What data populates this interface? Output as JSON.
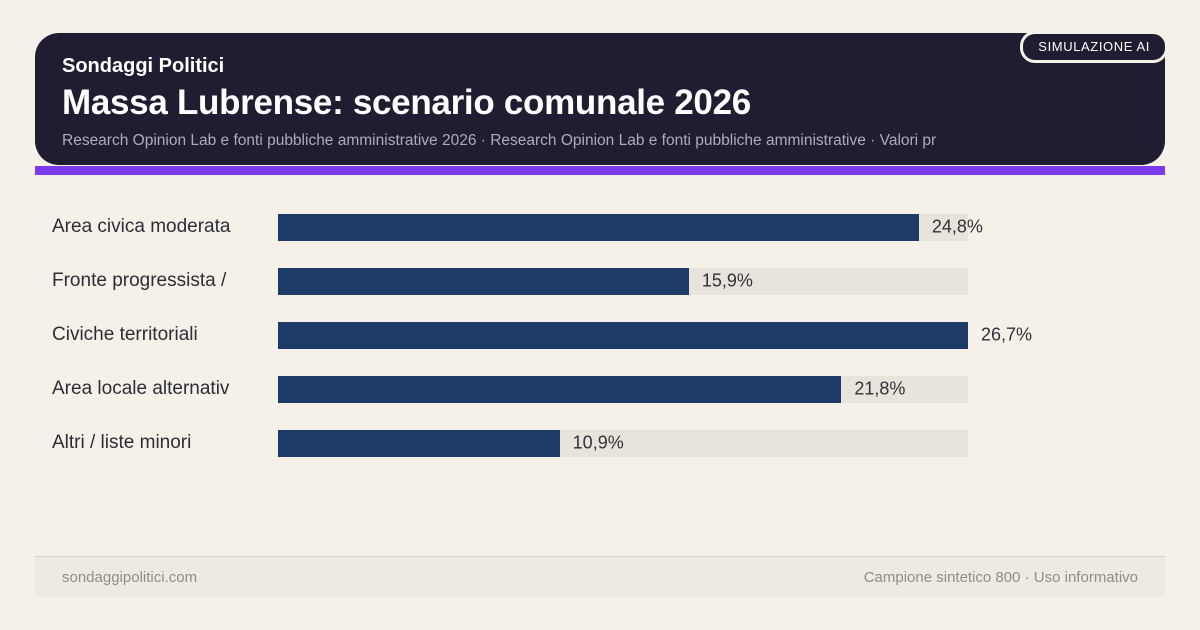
{
  "badge": {
    "label": "SIMULAZIONE AI"
  },
  "header": {
    "eyebrow": "Sondaggi Politici",
    "title": "Massa Lubrense: scenario comunale 2026",
    "subtitle": "Research Opinion Lab e fonti pubbliche amministrative 2026 · Research Opinion Lab e fonti pubbliche amministrative · Valori pr"
  },
  "chart_data": {
    "type": "bar",
    "orientation": "horizontal",
    "title": "Massa Lubrense: scenario comunale 2026",
    "xlabel": "",
    "ylabel": "",
    "categories": [
      "Area civica moderata",
      "Fronte progressista /",
      "Civiche territoriali",
      "Area locale alternativ",
      "Altri / liste minori"
    ],
    "values": [
      24.8,
      15.9,
      26.7,
      21.8,
      10.9
    ],
    "value_labels": [
      "24,8%",
      "15,9%",
      "26,7%",
      "21,8%",
      "10,9%"
    ],
    "xlim": [
      0,
      26.7
    ],
    "grid": "off",
    "legend": "none",
    "bar_color": "#1e3a66",
    "track_color": "#e8e4dc"
  },
  "footer": {
    "left": "sondaggipolitici.com",
    "right": "Campione sintetico 800 · Uso informativo"
  },
  "colors": {
    "background": "#f5f1e9",
    "header_bg": "#201c31",
    "accent": "#7c3aed",
    "bar": "#1e3a66",
    "track": "#e8e4dc",
    "footer_bg": "#edeae2"
  }
}
